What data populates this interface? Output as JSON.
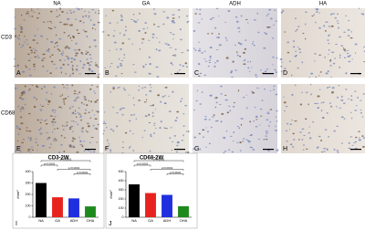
{
  "panels": {
    "columns": [
      "NA",
      "GA",
      "ADH",
      "HA"
    ],
    "rows": [
      "CD3",
      "CD68"
    ],
    "letters": [
      "A",
      "B",
      "C",
      "D",
      "E",
      "F",
      "G",
      "H"
    ]
  },
  "chart_data": [
    {
      "type": "bar",
      "title": "CD3-2W",
      "y_label": "/mm²",
      "letter": "I",
      "categories": [
        "NA",
        "GA",
        "ADH",
        "OHA"
      ],
      "values": [
        300,
        175,
        165,
        95
      ],
      "colors": [
        "#000000",
        "#e8231f",
        "#1f2fe0",
        "#1e8a1e"
      ],
      "ylim": [
        0,
        400
      ],
      "yticks": [
        0,
        100,
        200,
        300,
        400
      ],
      "annotations": [
        "p<0.0001",
        "p<0.0001",
        "p<0.0001",
        "p<0.0001"
      ]
    },
    {
      "type": "bar",
      "title": "CD68-2W",
      "y_label": "/mm²",
      "letter": "J",
      "categories": [
        "NA",
        "GA",
        "ADH",
        "OHA"
      ],
      "values": [
        360,
        265,
        245,
        120
      ],
      "colors": [
        "#000000",
        "#e8231f",
        "#1f2fe0",
        "#1e8a1e"
      ],
      "ylim": [
        0,
        500
      ],
      "yticks": [
        0,
        100,
        200,
        300,
        400,
        500
      ],
      "annotations": [
        "p<0.0001",
        "p<0.0001",
        "p=0.0001",
        "p<0.0001"
      ]
    }
  ]
}
